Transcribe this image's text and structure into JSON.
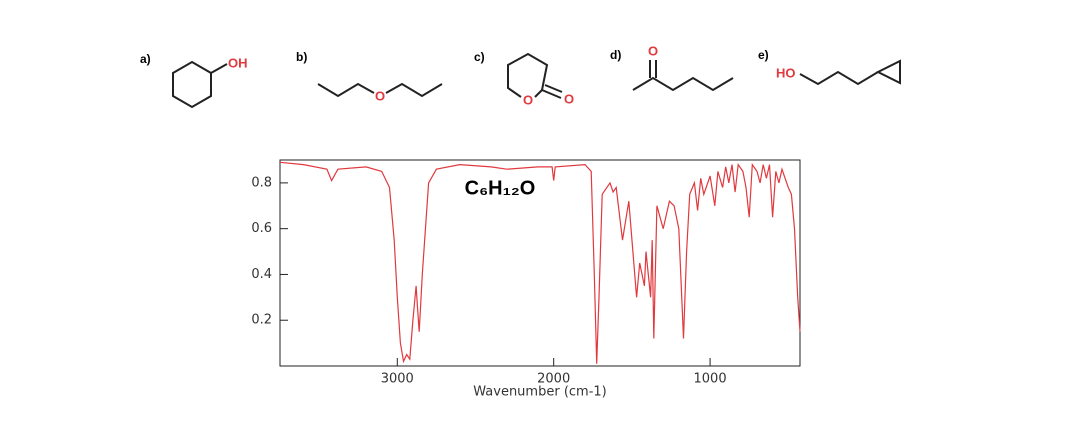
{
  "structures": [
    {
      "label": "a)",
      "atoms": [
        "OH"
      ]
    },
    {
      "label": "b)",
      "atoms": [
        "O"
      ]
    },
    {
      "label": "c)",
      "atoms": [
        "O",
        "O"
      ]
    },
    {
      "label": "d)",
      "atoms": [
        "O"
      ]
    },
    {
      "label": "e)",
      "atoms": [
        "HO"
      ]
    }
  ],
  "chart_data": {
    "type": "line",
    "title": "C₆H₁₂O",
    "x_label": "Wavenumber (cm-1)",
    "color": "#e0393e",
    "xlim": [
      3750,
      425
    ],
    "ylim": [
      0,
      0.9
    ],
    "xticks": [
      3000,
      2000,
      1000
    ],
    "yticks": [
      0.2,
      0.4,
      0.6,
      0.8
    ],
    "x": [
      3750,
      3600,
      3450,
      3420,
      3380,
      3200,
      3100,
      3050,
      3020,
      3000,
      2980,
      2960,
      2940,
      2920,
      2900,
      2880,
      2870,
      2860,
      2840,
      2800,
      2750,
      2600,
      2400,
      2300,
      2100,
      2010,
      2000,
      1990,
      1800,
      1760,
      1740,
      1725,
      1710,
      1690,
      1640,
      1620,
      1600,
      1560,
      1520,
      1470,
      1450,
      1420,
      1410,
      1380,
      1370,
      1360,
      1340,
      1300,
      1260,
      1230,
      1200,
      1170,
      1150,
      1130,
      1100,
      1080,
      1060,
      1040,
      1000,
      970,
      950,
      920,
      900,
      880,
      860,
      840,
      820,
      790,
      770,
      750,
      730,
      700,
      680,
      660,
      640,
      620,
      600,
      580,
      560,
      540,
      520,
      500,
      480,
      460,
      440,
      425
    ],
    "values": [
      0.89,
      0.88,
      0.86,
      0.81,
      0.86,
      0.87,
      0.85,
      0.78,
      0.55,
      0.3,
      0.1,
      0.02,
      0.05,
      0.03,
      0.2,
      0.35,
      0.25,
      0.15,
      0.4,
      0.8,
      0.86,
      0.88,
      0.87,
      0.86,
      0.87,
      0.87,
      0.81,
      0.87,
      0.88,
      0.85,
      0.4,
      0.01,
      0.3,
      0.75,
      0.8,
      0.76,
      0.78,
      0.55,
      0.72,
      0.3,
      0.45,
      0.35,
      0.5,
      0.3,
      0.55,
      0.12,
      0.7,
      0.6,
      0.72,
      0.7,
      0.6,
      0.12,
      0.5,
      0.75,
      0.8,
      0.68,
      0.82,
      0.75,
      0.83,
      0.7,
      0.85,
      0.78,
      0.87,
      0.8,
      0.88,
      0.76,
      0.88,
      0.85,
      0.78,
      0.65,
      0.88,
      0.85,
      0.8,
      0.88,
      0.82,
      0.88,
      0.65,
      0.85,
      0.8,
      0.86,
      0.82,
      0.78,
      0.75,
      0.6,
      0.3,
      0.15
    ]
  }
}
